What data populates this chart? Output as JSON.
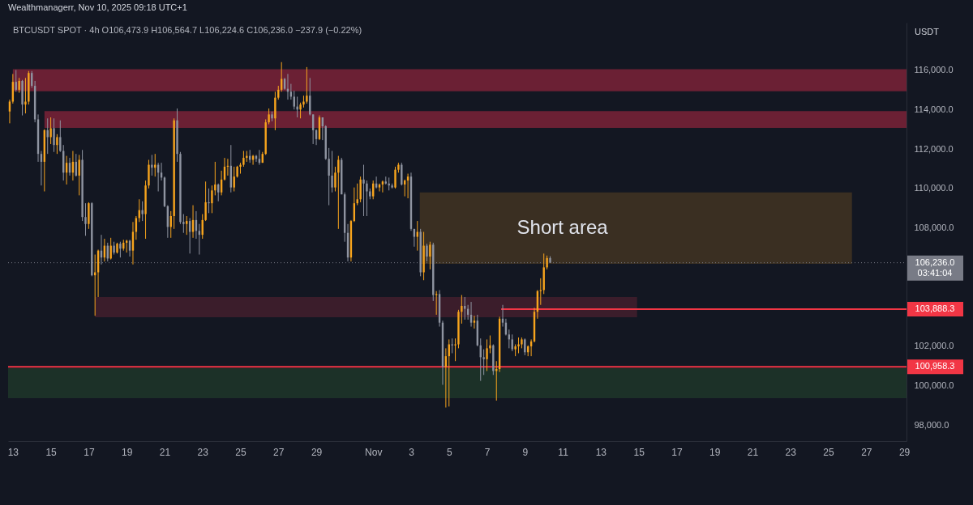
{
  "chart_data": {
    "type": "candlestick",
    "title": "Wealthmanagerr, Nov 10, 2025 09:18 UTC+1",
    "subtitle": "BTCUSDT SPOT · 4h  O106,473.9 H106,564.7 L106,224.6 C106,236.0 −237.9 (−0.22%)",
    "ylabel": "USDT",
    "annotations": [
      "Short area"
    ],
    "x": [
      "2025-10-12T20:00",
      "2025-10-13T00:00",
      "2025-10-13T04:00",
      "2025-10-13T08:00",
      "2025-10-13T12:00",
      "2025-10-13T16:00",
      "2025-10-13T20:00",
      "2025-10-14T00:00",
      "2025-10-14T04:00",
      "2025-10-14T08:00",
      "2025-10-14T12:00",
      "2025-10-14T16:00",
      "2025-10-14T20:00",
      "2025-10-15T00:00",
      "2025-10-15T04:00",
      "2025-10-15T08:00",
      "2025-10-15T12:00",
      "2025-10-15T16:00",
      "2025-10-15T20:00",
      "2025-10-16T00:00",
      "2025-10-16T04:00",
      "2025-10-16T08:00",
      "2025-10-16T12:00",
      "2025-10-16T16:00",
      "2025-10-16T20:00",
      "2025-10-17T00:00",
      "2025-10-17T04:00",
      "2025-10-17T08:00",
      "2025-10-17T12:00",
      "2025-10-17T16:00",
      "2025-10-17T20:00",
      "2025-10-18T00:00",
      "2025-10-18T04:00",
      "2025-10-18T08:00",
      "2025-10-18T12:00",
      "2025-10-18T16:00",
      "2025-10-18T20:00",
      "2025-10-19T00:00",
      "2025-10-19T04:00",
      "2025-10-19T08:00",
      "2025-10-19T12:00",
      "2025-10-19T16:00",
      "2025-10-19T20:00",
      "2025-10-20T00:00",
      "2025-10-20T04:00",
      "2025-10-20T08:00",
      "2025-10-20T12:00",
      "2025-10-20T16:00",
      "2025-10-20T20:00",
      "2025-10-21T00:00",
      "2025-10-21T04:00",
      "2025-10-21T08:00",
      "2025-10-21T12:00",
      "2025-10-21T16:00",
      "2025-10-21T20:00",
      "2025-10-22T00:00",
      "2025-10-22T04:00",
      "2025-10-22T08:00",
      "2025-10-22T12:00",
      "2025-10-22T16:00",
      "2025-10-22T20:00",
      "2025-10-23T00:00",
      "2025-10-23T04:00",
      "2025-10-23T08:00",
      "2025-10-23T12:00",
      "2025-10-23T16:00",
      "2025-10-23T20:00",
      "2025-10-24T00:00",
      "2025-10-24T04:00",
      "2025-10-24T08:00",
      "2025-10-24T12:00",
      "2025-10-24T16:00",
      "2025-10-24T20:00",
      "2025-10-25T00:00",
      "2025-10-25T04:00",
      "2025-10-25T08:00",
      "2025-10-25T12:00",
      "2025-10-25T16:00",
      "2025-10-25T20:00",
      "2025-10-26T00:00",
      "2025-10-26T04:00",
      "2025-10-26T08:00",
      "2025-10-26T12:00",
      "2025-10-26T16:00",
      "2025-10-26T20:00",
      "2025-10-27T00:00",
      "2025-10-27T04:00",
      "2025-10-27T08:00",
      "2025-10-27T12:00",
      "2025-10-27T16:00",
      "2025-10-27T20:00",
      "2025-10-28T00:00",
      "2025-10-28T04:00",
      "2025-10-28T08:00",
      "2025-10-28T12:00",
      "2025-10-28T16:00",
      "2025-10-28T20:00",
      "2025-10-29T00:00",
      "2025-10-29T04:00",
      "2025-10-29T08:00",
      "2025-10-29T12:00",
      "2025-10-29T16:00",
      "2025-10-29T20:00",
      "2025-10-30T00:00",
      "2025-10-30T04:00",
      "2025-10-30T08:00",
      "2025-10-30T12:00",
      "2025-10-30T16:00",
      "2025-10-30T20:00",
      "2025-10-31T00:00",
      "2025-10-31T04:00",
      "2025-10-31T08:00",
      "2025-10-31T12:00",
      "2025-10-31T16:00",
      "2025-10-31T20:00",
      "2025-11-01T00:00",
      "2025-11-01T04:00",
      "2025-11-01T08:00",
      "2025-11-01T12:00",
      "2025-11-01T16:00",
      "2025-11-01T20:00",
      "2025-11-02T00:00",
      "2025-11-02T04:00",
      "2025-11-02T08:00",
      "2025-11-02T12:00",
      "2025-11-02T16:00",
      "2025-11-02T20:00",
      "2025-11-03T00:00",
      "2025-11-03T04:00",
      "2025-11-03T08:00",
      "2025-11-03T12:00",
      "2025-11-03T16:00",
      "2025-11-03T20:00",
      "2025-11-04T00:00",
      "2025-11-04T04:00",
      "2025-11-04T08:00",
      "2025-11-04T12:00",
      "2025-11-04T16:00",
      "2025-11-04T20:00",
      "2025-11-05T00:00",
      "2025-11-05T04:00",
      "2025-11-05T08:00",
      "2025-11-05T12:00",
      "2025-11-05T16:00",
      "2025-11-05T20:00",
      "2025-11-06T00:00",
      "2025-11-06T04:00",
      "2025-11-06T08:00",
      "2025-11-06T12:00",
      "2025-11-06T16:00",
      "2025-11-06T20:00",
      "2025-11-07T00:00",
      "2025-11-07T04:00",
      "2025-11-07T08:00",
      "2025-11-07T12:00",
      "2025-11-07T16:00",
      "2025-11-07T20:00",
      "2025-11-08T00:00",
      "2025-11-08T04:00",
      "2025-11-08T08:00",
      "2025-11-08T12:00",
      "2025-11-08T16:00",
      "2025-11-08T20:00",
      "2025-11-09T00:00",
      "2025-11-09T04:00",
      "2025-11-09T08:00",
      "2025-11-09T12:00",
      "2025-11-09T16:00",
      "2025-11-09T20:00",
      "2025-11-10T00:00",
      "2025-11-10T04:00",
      "2025-11-10T08:00"
    ],
    "ohlc": [
      [
        113900,
        114500,
        113300,
        114400
      ],
      [
        114400,
        115800,
        114300,
        115400
      ],
      [
        115400,
        116000,
        114900,
        115000
      ],
      [
        115000,
        115600,
        114850,
        115450
      ],
      [
        115450,
        115500,
        113700,
        114250
      ],
      [
        114250,
        115600,
        113800,
        114400
      ],
      [
        114400,
        115950,
        114250,
        115850
      ],
      [
        115850,
        115950,
        115100,
        115200
      ],
      [
        115200,
        115450,
        113350,
        113500
      ],
      [
        113500,
        113750,
        111350,
        111750
      ],
      [
        111750,
        111900,
        110150,
        111350
      ],
      [
        111350,
        113000,
        109850,
        112950
      ],
      [
        112950,
        113550,
        111750,
        112600
      ],
      [
        112600,
        113600,
        112250,
        113050
      ],
      [
        113050,
        113550,
        111850,
        112200
      ],
      [
        112200,
        112750,
        111750,
        112600
      ],
      [
        112600,
        113450,
        111850,
        111900
      ],
      [
        111900,
        112200,
        110400,
        110800
      ],
      [
        110800,
        111650,
        110200,
        111300
      ],
      [
        111300,
        111550,
        110650,
        110800
      ],
      [
        110800,
        111900,
        110400,
        111350
      ],
      [
        111350,
        111750,
        110600,
        110650
      ],
      [
        110650,
        111700,
        109650,
        111450
      ],
      [
        111450,
        111950,
        108350,
        108550
      ],
      [
        108550,
        109250,
        107600,
        108200
      ],
      [
        108200,
        109300,
        107950,
        109250
      ],
      [
        109250,
        109300,
        105550,
        105600
      ],
      [
        105600,
        106650,
        103550,
        105750
      ],
      [
        105750,
        106900,
        104500,
        106850
      ],
      [
        106850,
        107650,
        106150,
        106500
      ],
      [
        106500,
        107450,
        106300,
        107100
      ],
      [
        107100,
        107250,
        106300,
        106450
      ],
      [
        106450,
        107500,
        106400,
        107100
      ],
      [
        107100,
        107300,
        106650,
        106750
      ],
      [
        106750,
        107250,
        106700,
        107200
      ],
      [
        107200,
        107300,
        106500,
        106950
      ],
      [
        106950,
        107400,
        106850,
        107250
      ],
      [
        107250,
        107400,
        106750,
        107350
      ],
      [
        107350,
        107400,
        106550,
        106850
      ],
      [
        106850,
        108300,
        106150,
        107800
      ],
      [
        107800,
        108600,
        107400,
        108500
      ],
      [
        108500,
        109450,
        108300,
        108900
      ],
      [
        108900,
        109350,
        108350,
        108700
      ],
      [
        108700,
        110400,
        107450,
        110150
      ],
      [
        110150,
        111450,
        110000,
        111200
      ],
      [
        111200,
        111700,
        110650,
        111050
      ],
      [
        111050,
        111750,
        110600,
        111200
      ],
      [
        111200,
        111300,
        109850,
        110800
      ],
      [
        110800,
        111300,
        110400,
        110550
      ],
      [
        110550,
        110600,
        109050,
        109100
      ],
      [
        109100,
        109150,
        107500,
        108050
      ],
      [
        108050,
        108850,
        107500,
        108600
      ],
      [
        108600,
        113550,
        107950,
        113450
      ],
      [
        113450,
        114050,
        111350,
        111750
      ],
      [
        111750,
        111850,
        108200,
        108300
      ],
      [
        108300,
        108700,
        107750,
        108200
      ],
      [
        108200,
        108600,
        107650,
        108350
      ],
      [
        108350,
        108500,
        106700,
        107800
      ],
      [
        107800,
        109150,
        107500,
        108400
      ],
      [
        108400,
        108850,
        107450,
        107850
      ],
      [
        107850,
        108200,
        106650,
        107650
      ],
      [
        107650,
        108700,
        107450,
        108400
      ],
      [
        108400,
        110350,
        108350,
        109300
      ],
      [
        109300,
        110000,
        108750,
        109250
      ],
      [
        109250,
        110150,
        108750,
        109900
      ],
      [
        109900,
        111350,
        109650,
        110200
      ],
      [
        110200,
        110250,
        109350,
        109800
      ],
      [
        109800,
        110900,
        109650,
        110450
      ],
      [
        110450,
        111550,
        110400,
        111100
      ],
      [
        111100,
        111500,
        110650,
        111150
      ],
      [
        111150,
        112200,
        109800,
        110050
      ],
      [
        110050,
        111100,
        109850,
        110600
      ],
      [
        110600,
        111150,
        110550,
        111100
      ],
      [
        111100,
        111300,
        110750,
        111200
      ],
      [
        111200,
        111900,
        111100,
        111550
      ],
      [
        111550,
        111900,
        111350,
        111650
      ],
      [
        111650,
        111950,
        111300,
        111450
      ],
      [
        111450,
        111700,
        111200,
        111650
      ],
      [
        111650,
        111700,
        111350,
        111500
      ],
      [
        111500,
        111950,
        111200,
        111300
      ],
      [
        111300,
        111850,
        111300,
        111750
      ],
      [
        111750,
        113500,
        111700,
        113350
      ],
      [
        113350,
        114050,
        113250,
        113750
      ],
      [
        113750,
        113900,
        113400,
        113550
      ],
      [
        113550,
        114900,
        112950,
        114600
      ],
      [
        114600,
        115200,
        114500,
        115000
      ],
      [
        115000,
        116400,
        114900,
        115550
      ],
      [
        115550,
        115600,
        115000,
        115050
      ],
      [
        115050,
        115800,
        114500,
        114900
      ],
      [
        114900,
        115300,
        114500,
        114650
      ],
      [
        114650,
        114950,
        114000,
        114150
      ],
      [
        114150,
        114650,
        113600,
        114000
      ],
      [
        114000,
        114350,
        113550,
        114250
      ],
      [
        114250,
        114700,
        114100,
        114400
      ],
      [
        114400,
        116150,
        114300,
        114700
      ],
      [
        114700,
        115600,
        113700,
        113750
      ],
      [
        113750,
        113750,
        112250,
        112950
      ],
      [
        112950,
        113000,
        112200,
        112500
      ],
      [
        112500,
        113700,
        112450,
        113600
      ],
      [
        113600,
        113600,
        112450,
        113150
      ],
      [
        113150,
        113200,
        111450,
        111500
      ],
      [
        111500,
        112050,
        109150,
        110650
      ],
      [
        110650,
        111900,
        109800,
        110050
      ],
      [
        110050,
        111100,
        109850,
        110800
      ],
      [
        110800,
        111650,
        107950,
        111450
      ],
      [
        111450,
        111550,
        109700,
        109700
      ],
      [
        109700,
        109800,
        107300,
        107750
      ],
      [
        107750,
        108200,
        106300,
        106500
      ],
      [
        106500,
        108400,
        106300,
        108350
      ],
      [
        108350,
        110050,
        108300,
        109250
      ],
      [
        109250,
        110250,
        109150,
        109450
      ],
      [
        109450,
        110600,
        109300,
        110450
      ],
      [
        110450,
        111200,
        108600,
        110250
      ],
      [
        110250,
        110400,
        108600,
        109850
      ],
      [
        109850,
        110000,
        109450,
        109600
      ],
      [
        109600,
        110400,
        109450,
        110250
      ],
      [
        110250,
        110600,
        110000,
        110050
      ],
      [
        110050,
        110250,
        109850,
        110200
      ],
      [
        110200,
        110400,
        109800,
        110350
      ],
      [
        110350,
        110600,
        110200,
        110250
      ],
      [
        110250,
        110550,
        109900,
        110150
      ],
      [
        110150,
        110250,
        110000,
        110050
      ],
      [
        110050,
        111100,
        110000,
        110950
      ],
      [
        110950,
        111300,
        110800,
        111200
      ],
      [
        111200,
        111300,
        110150,
        110200
      ],
      [
        110200,
        110450,
        109600,
        110400
      ],
      [
        110400,
        110750,
        109500,
        110600
      ],
      [
        110600,
        110800,
        107850,
        107950
      ],
      [
        107950,
        107950,
        107050,
        107550
      ],
      [
        107550,
        108350,
        106850,
        107800
      ],
      [
        107800,
        107950,
        105550,
        105750
      ],
      [
        105750,
        107800,
        105350,
        107100
      ],
      [
        107100,
        107200,
        106300,
        106550
      ],
      [
        106550,
        107300,
        105900,
        107150
      ],
      [
        107150,
        107250,
        104300,
        104600
      ],
      [
        104600,
        104800,
        103600,
        104650
      ],
      [
        104650,
        104850,
        103000,
        103200
      ],
      [
        103200,
        103300,
        100050,
        100950
      ],
      [
        100950,
        101900,
        98900,
        101500
      ],
      [
        101500,
        102350,
        98950,
        102100
      ],
      [
        102100,
        102400,
        101650,
        102050
      ],
      [
        102050,
        102400,
        101250,
        102100
      ],
      [
        102100,
        103850,
        101900,
        103750
      ],
      [
        103750,
        104600,
        103150,
        104050
      ],
      [
        104050,
        104500,
        103350,
        103900
      ],
      [
        103900,
        104100,
        103350,
        103600
      ],
      [
        103600,
        104250,
        103000,
        103200
      ],
      [
        103200,
        103550,
        102900,
        103300
      ],
      [
        103300,
        103600,
        102000,
        102050
      ],
      [
        102050,
        102400,
        100250,
        101450
      ],
      [
        101450,
        101850,
        100550,
        101350
      ],
      [
        101350,
        102350,
        100750,
        101900
      ],
      [
        101900,
        102550,
        101650,
        102050
      ],
      [
        102050,
        102100,
        100550,
        100750
      ],
      [
        100750,
        101250,
        99250,
        100850
      ],
      [
        100850,
        103500,
        100700,
        103400
      ],
      [
        103400,
        104100,
        103000,
        103200
      ],
      [
        103200,
        103400,
        102550,
        102600
      ],
      [
        102600,
        102850,
        101900,
        102350
      ],
      [
        102350,
        102600,
        101750,
        101850
      ],
      [
        101850,
        102100,
        101500,
        102000
      ],
      [
        102000,
        102450,
        101650,
        102100
      ],
      [
        102100,
        102450,
        101900,
        102350
      ],
      [
        102350,
        102400,
        101550,
        101700
      ],
      [
        101700,
        102050,
        101500,
        102000
      ],
      [
        102000,
        102350,
        101500,
        102250
      ],
      [
        102250,
        103950,
        102200,
        103750
      ],
      [
        103750,
        104850,
        103400,
        104800
      ],
      [
        104800,
        105450,
        104100,
        104850
      ],
      [
        104850,
        106700,
        104650,
        106000
      ],
      [
        106000,
        106600,
        105900,
        106473.9
      ],
      [
        106473.9,
        106564.7,
        106224.6,
        106236.0
      ]
    ],
    "colors": [
      "#f7a41d",
      "#f7a41d",
      "#8f94a1",
      "#f7a41d",
      "#8f94a1",
      "#f7a41d",
      "#f7a41d",
      "#8f94a1",
      "#8f94a1",
      "#8f94a1",
      "#8f94a1",
      "#f7a41d",
      "#8f94a1",
      "#f7a41d",
      "#8f94a1",
      "#f7a41d",
      "#8f94a1",
      "#8f94a1",
      "#f7a41d",
      "#8f94a1",
      "#f7a41d",
      "#8f94a1",
      "#f7a41d",
      "#8f94a1",
      "#8f94a1",
      "#f7a41d",
      "#8f94a1",
      "#f7a41d",
      "#f7a41d",
      "#8f94a1",
      "#f7a41d",
      "#8f94a1",
      "#f7a41d",
      "#8f94a1",
      "#f7a41d",
      "#8f94a1",
      "#f7a41d",
      "#f7a41d",
      "#8f94a1",
      "#f7a41d",
      "#f7a41d",
      "#f7a41d",
      "#8f94a1",
      "#f7a41d",
      "#f7a41d",
      "#8f94a1",
      "#f7a41d",
      "#8f94a1",
      "#8f94a1",
      "#8f94a1",
      "#8f94a1",
      "#f7a41d",
      "#f7a41d",
      "#8f94a1",
      "#8f94a1",
      "#8f94a1",
      "#f7a41d",
      "#8f94a1",
      "#f7a41d",
      "#8f94a1",
      "#8f94a1",
      "#f7a41d",
      "#f7a41d",
      "#8f94a1",
      "#f7a41d",
      "#f7a41d",
      "#8f94a1",
      "#f7a41d",
      "#f7a41d",
      "#f7a41d",
      "#8f94a1",
      "#f7a41d",
      "#f7a41d",
      "#f7a41d",
      "#f7a41d",
      "#f7a41d",
      "#8f94a1",
      "#f7a41d",
      "#8f94a1",
      "#8f94a1",
      "#f7a41d",
      "#f7a41d",
      "#f7a41d",
      "#8f94a1",
      "#f7a41d",
      "#f7a41d",
      "#f7a41d",
      "#8f94a1",
      "#8f94a1",
      "#8f94a1",
      "#8f94a1",
      "#8f94a1",
      "#f7a41d",
      "#f7a41d",
      "#f7a41d",
      "#8f94a1",
      "#8f94a1",
      "#8f94a1",
      "#f7a41d",
      "#8f94a1",
      "#8f94a1",
      "#8f94a1",
      "#8f94a1",
      "#f7a41d",
      "#f7a41d",
      "#8f94a1",
      "#8f94a1",
      "#8f94a1",
      "#f7a41d",
      "#f7a41d",
      "#f7a41d",
      "#f7a41d",
      "#8f94a1",
      "#8f94a1",
      "#8f94a1",
      "#f7a41d",
      "#8f94a1",
      "#f7a41d",
      "#f7a41d",
      "#8f94a1",
      "#8f94a1",
      "#8f94a1",
      "#f7a41d",
      "#f7a41d",
      "#8f94a1",
      "#f7a41d",
      "#f7a41d",
      "#8f94a1",
      "#8f94a1",
      "#f7a41d",
      "#8f94a1",
      "#f7a41d",
      "#8f94a1",
      "#f7a41d",
      "#8f94a1",
      "#f7a41d",
      "#8f94a1",
      "#8f94a1",
      "#f7a41d",
      "#f7a41d",
      "#8f94a1",
      "#f7a41d",
      "#f7a41d",
      "#f7a41d",
      "#8f94a1",
      "#8f94a1",
      "#8f94a1",
      "#f7a41d",
      "#8f94a1",
      "#8f94a1",
      "#8f94a1",
      "#f7a41d",
      "#f7a41d",
      "#8f94a1",
      "#f7a41d",
      "#f7a41d",
      "#8f94a1",
      "#8f94a1",
      "#8f94a1",
      "#8f94a1",
      "#f7a41d",
      "#f7a41d",
      "#f7a41d",
      "#8f94a1",
      "#f7a41d",
      "#f7a41d",
      "#f7a41d",
      "#f7a41d",
      "#f7a41d",
      "#f7a41d",
      "#f7a41d",
      "#8f94a1"
    ],
    "series": [
      {
        "type": "line",
        "x": [
          "2025-10-13T00:00",
          "2025-11-29T03:00"
        ],
        "values": [
          null,
          null
        ],
        "lower": [
          114920,
          114920
        ],
        "upper": [
          116040,
          116040
        ],
        "color": "#6b2034"
      },
      {
        "type": "line",
        "x": [
          "2025-10-14T16:00",
          "2025-11-29T03:00"
        ],
        "values": [
          null,
          null
        ],
        "lower": [
          113070,
          113070
        ],
        "upper": [
          113920,
          113920
        ],
        "color": "#6b2034"
      },
      {
        "type": "line",
        "x": [
          "2025-10-17T08:00",
          "2025-11-14T22:00"
        ],
        "values": [
          null,
          null
        ],
        "lower": [
          103470,
          103470
        ],
        "upper": [
          104500,
          104500
        ],
        "color": "#3b1d2b"
      },
      {
        "type": "line",
        "x": [
          "2025-11-03T11:00",
          "2025-11-26T06:00"
        ],
        "values": [
          null,
          null
        ],
        "lower": [
          106180,
          106180
        ],
        "upper": [
          109800,
          109800
        ],
        "color": "#3a2f22"
      },
      {
        "type": "line",
        "x": [
          "2025-11-07T18:00",
          "2025-11-29T03:00"
        ],
        "values": [
          103888.3,
          103888.3
        ],
        "value_labels": [
          null,
          "103,888.3"
        ],
        "color": "#f23645"
      }
    ],
    "xlim": [
      "2025-10-12T18:00",
      "2025-11-29T03:00"
    ],
    "xticks": [
      {
        "value": "2025-10-13",
        "label": "13"
      },
      {
        "value": "2025-10-15",
        "label": "15"
      },
      {
        "value": "2025-10-17",
        "label": "17"
      },
      {
        "value": "2025-10-19",
        "label": "19"
      },
      {
        "value": "2025-10-21",
        "label": "21"
      },
      {
        "value": "2025-10-23",
        "label": "23"
      },
      {
        "value": "2025-10-25",
        "label": "25"
      },
      {
        "value": "2025-10-27",
        "label": "27"
      },
      {
        "value": "2025-10-29",
        "label": "29"
      },
      {
        "value": "2025-11-01",
        "label": "Nov"
      },
      {
        "value": "2025-11-03",
        "label": "3"
      },
      {
        "value": "2025-11-05",
        "label": "5"
      },
      {
        "value": "2025-11-07",
        "label": "7"
      },
      {
        "value": "2025-11-09",
        "label": "9"
      },
      {
        "value": "2025-11-11",
        "label": "11"
      },
      {
        "value": "2025-11-13",
        "label": "13"
      },
      {
        "value": "2025-11-15",
        "label": "15"
      },
      {
        "value": "2025-11-17",
        "label": "17"
      },
      {
        "value": "2025-11-19",
        "label": "19"
      },
      {
        "value": "2025-11-21",
        "label": "21"
      },
      {
        "value": "2025-11-23",
        "label": "23"
      },
      {
        "value": "2025-11-25",
        "label": "25"
      },
      {
        "value": "2025-11-27",
        "label": "27"
      },
      {
        "value": "2025-11-29",
        "label": "29"
      }
    ],
    "ylim": [
      97200,
      118400
    ],
    "yticks": [
      {
        "value": 98000,
        "label": "98,000.0"
      },
      {
        "value": 100000,
        "label": "100,000.0"
      },
      {
        "value": 102000,
        "label": "102,000.0"
      },
      {
        "value": 108000,
        "label": "108,000.0"
      },
      {
        "value": 110000,
        "label": "110,000.0"
      },
      {
        "value": 112000,
        "label": "112,000.0"
      },
      {
        "value": 114000,
        "label": "114,000.0"
      },
      {
        "value": 116000,
        "label": "116,000.0"
      }
    ],
    "bands": [
      {
        "axis": "y",
        "from": 99370,
        "to": 100890,
        "color": "#1c3128"
      }
    ],
    "ref_lines": [
      {
        "axis": "y",
        "value": 100958.3,
        "label": "100,958.3",
        "color": "#f23645"
      },
      {
        "axis": "y",
        "value": 106236.0,
        "label": "106,236.0\n03:41:04",
        "color": "#787b86",
        "line_style": "dotted"
      }
    ],
    "grid": false
  }
}
